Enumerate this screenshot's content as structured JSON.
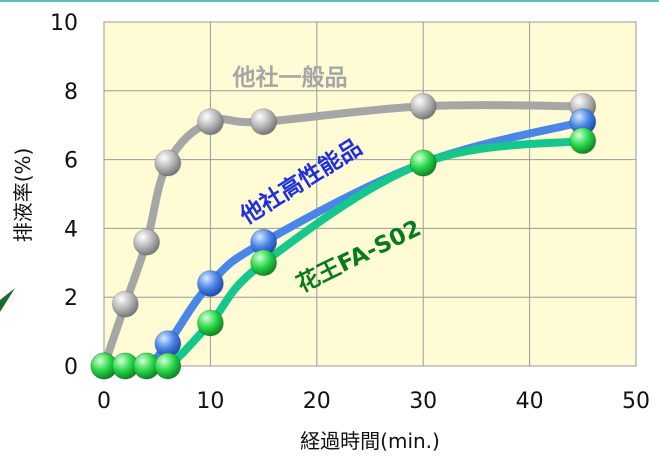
{
  "chart_data": {
    "type": "line",
    "title": "",
    "xlabel": "経過時間(min.)",
    "ylabel": "排液率(%)",
    "xlim": [
      0,
      50
    ],
    "ylim": [
      0,
      10
    ],
    "xticks": [
      "0",
      "10",
      "20",
      "30",
      "40",
      "50"
    ],
    "yticks": [
      "0",
      "2",
      "4",
      "6",
      "8",
      "10"
    ],
    "grid": true,
    "plot_background": "#FFFBD5",
    "series": [
      {
        "name": "他社一般品",
        "color": "#A6A6A6",
        "label_color": "#A6A6A6",
        "x": [
          0,
          2,
          4,
          6,
          10,
          15,
          30,
          45
        ],
        "y": [
          0,
          1.8,
          3.6,
          5.9,
          7.1,
          7.1,
          7.55,
          7.55
        ]
      },
      {
        "name": "他社高性能品",
        "color": "#4A86E8",
        "label_color": "#1F2FE0",
        "x": [
          0,
          2,
          4,
          6,
          10,
          15,
          30,
          45
        ],
        "y": [
          0,
          0,
          0,
          0.65,
          2.4,
          3.6,
          5.9,
          7.1
        ]
      },
      {
        "name": "花王FA-S02",
        "color": "#14C88C",
        "label_color": "#0A7A1E",
        "x": [
          0,
          2,
          4,
          6,
          10,
          15,
          30,
          45
        ],
        "y": [
          0,
          0,
          0,
          0,
          1.25,
          3.0,
          5.9,
          6.55
        ]
      }
    ]
  }
}
